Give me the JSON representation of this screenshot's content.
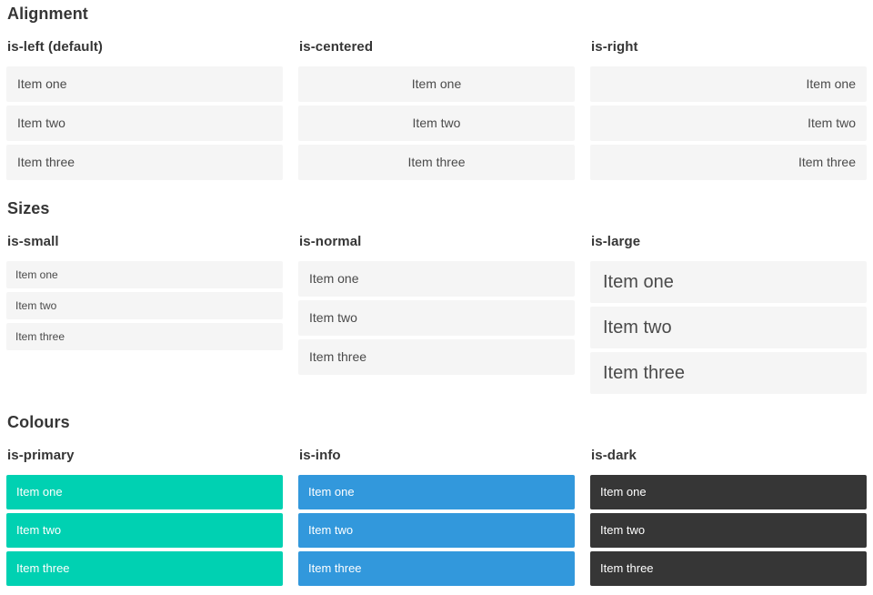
{
  "colors": {
    "primary": "#00d1b2",
    "info": "#3298dc",
    "dark": "#363636",
    "item_bg": "#f5f5f5",
    "item_text": "#4a4a4a",
    "heading_text": "#363636",
    "colour_item_text": "#ffffff"
  },
  "sections": [
    {
      "title": "Alignment",
      "columns": [
        {
          "label": "is-left (default)",
          "variant": "align-left",
          "items": [
            "Item one",
            "Item two",
            "Item three"
          ]
        },
        {
          "label": "is-centered",
          "variant": "align-center",
          "items": [
            "Item one",
            "Item two",
            "Item three"
          ]
        },
        {
          "label": "is-right",
          "variant": "align-right",
          "items": [
            "Item one",
            "Item two",
            "Item three"
          ]
        }
      ]
    },
    {
      "title": "Sizes",
      "columns": [
        {
          "label": "is-small",
          "variant": "size-small",
          "items": [
            "Item one",
            "Item two",
            "Item three"
          ]
        },
        {
          "label": "is-normal",
          "variant": "size-normal",
          "items": [
            "Item one",
            "Item two",
            "Item three"
          ]
        },
        {
          "label": "is-large",
          "variant": "size-large",
          "items": [
            "Item one",
            "Item two",
            "Item three"
          ]
        }
      ]
    },
    {
      "title": "Colours",
      "columns": [
        {
          "label": "is-primary",
          "variant": "color-primary",
          "items": [
            "Item one",
            "Item two",
            "Item three"
          ]
        },
        {
          "label": "is-info",
          "variant": "color-info",
          "items": [
            "Item one",
            "Item two",
            "Item three"
          ]
        },
        {
          "label": "is-dark",
          "variant": "color-dark",
          "items": [
            "Item one",
            "Item two",
            "Item three"
          ]
        }
      ]
    }
  ]
}
